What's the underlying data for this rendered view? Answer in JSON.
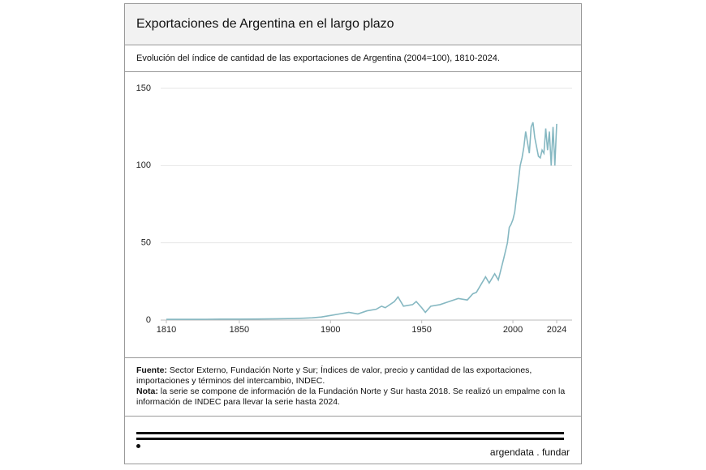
{
  "chart_data": {
    "type": "line",
    "title": "Exportaciones de Argentina en el largo plazo",
    "subtitle": "Evolución del índice de cantidad de las exportaciones de Argentina (2004=100), 1810-2024.",
    "x": [
      1810,
      1820,
      1830,
      1840,
      1850,
      1860,
      1870,
      1880,
      1885,
      1890,
      1895,
      1900,
      1905,
      1910,
      1915,
      1920,
      1925,
      1928,
      1930,
      1935,
      1937,
      1940,
      1945,
      1947,
      1950,
      1952,
      1955,
      1960,
      1965,
      1970,
      1975,
      1978,
      1980,
      1985,
      1987,
      1990,
      1992,
      1995,
      1997,
      1998,
      1999,
      2000,
      2001,
      2002,
      2003,
      2004,
      2005,
      2006,
      2007,
      2008,
      2009,
      2010,
      2011,
      2012,
      2013,
      2014,
      2015,
      2016,
      2017,
      2018,
      2019,
      2020,
      2021,
      2022,
      2023,
      2024
    ],
    "values": [
      0.5,
      0.5,
      0.5,
      0.6,
      0.6,
      0.7,
      0.8,
      1,
      1.2,
      1.5,
      2,
      3,
      4,
      5,
      4,
      6,
      7,
      9,
      8,
      12,
      15,
      9,
      10,
      12,
      8,
      5,
      9,
      10,
      12,
      14,
      13,
      17,
      18,
      28,
      24,
      30,
      26,
      40,
      50,
      60,
      62,
      65,
      70,
      80,
      90,
      100,
      105,
      112,
      122,
      115,
      108,
      125,
      128,
      118,
      112,
      106,
      105,
      110,
      108,
      124,
      110,
      122,
      100,
      125,
      100,
      127
    ],
    "color": "#86b8c2",
    "xlim": [
      1810,
      2024
    ],
    "xticks": [
      1810,
      1850,
      1900,
      1950,
      2000,
      2024
    ],
    "ylim": [
      0,
      150
    ],
    "yticks": [
      0,
      50,
      100,
      150
    ],
    "grid": true
  },
  "notes": {
    "source_label": "Fuente:",
    "source_text": "Sector Externo, Fundación Norte y Sur; Índices de valor, precio y cantidad de las exportaciones, importaciones y términos del intercambio, INDEC.",
    "note_label": "Nota:",
    "note_text": "la serie se compone de información de la Fundación Norte y Sur hasta 2018. Se realizó un empalme con la información de INDEC para llevar la serie hasta 2024."
  },
  "logo": "argendata . fundar"
}
